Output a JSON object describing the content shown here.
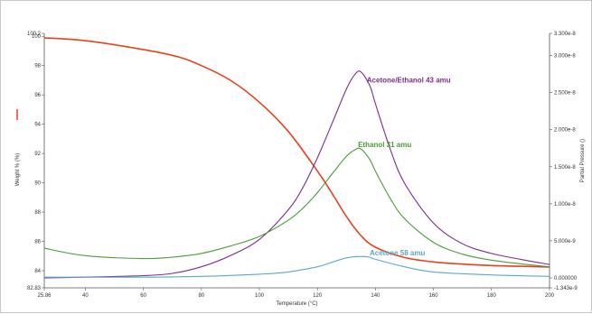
{
  "chart_data": {
    "type": "line",
    "xlabel": "Temperature (°C)",
    "ylabel_left": "Weight % (%)",
    "ylabel_right": "Partial Pressure ()",
    "xlim": [
      25.86,
      200
    ],
    "ylim_left": [
      82.83,
      100.2
    ],
    "ylim_right": [
      -1.343e-09,
      3.3e-08
    ],
    "x_ticks": [
      {
        "value": 25.86,
        "label": "25.86"
      },
      {
        "value": 40,
        "label": "40"
      },
      {
        "value": 60,
        "label": "60"
      },
      {
        "value": 80,
        "label": "80"
      },
      {
        "value": 100,
        "label": "100"
      },
      {
        "value": 120,
        "label": "120"
      },
      {
        "value": 140,
        "label": "140"
      },
      {
        "value": 160,
        "label": "160"
      },
      {
        "value": 180,
        "label": "180"
      },
      {
        "value": 200,
        "label": "200"
      }
    ],
    "y_left_ticks": [
      {
        "value": 100.2,
        "label": "100.2"
      },
      {
        "value": 100,
        "label": "100"
      },
      {
        "value": 98,
        "label": "98"
      },
      {
        "value": 96,
        "label": "96"
      },
      {
        "value": 94,
        "label": "94"
      },
      {
        "value": 92,
        "label": "92"
      },
      {
        "value": 90,
        "label": "90"
      },
      {
        "value": 88,
        "label": "88"
      },
      {
        "value": 86,
        "label": "86"
      },
      {
        "value": 84,
        "label": "84"
      },
      {
        "value": 82.83,
        "label": "82.83"
      }
    ],
    "y_right_ticks": [
      {
        "value": 3.3e-08,
        "label": "3.300e-8"
      },
      {
        "value": 3e-08,
        "label": "3.000e-8"
      },
      {
        "value": 2.5e-08,
        "label": "2.500e-8"
      },
      {
        "value": 2e-08,
        "label": "2.000e-8"
      },
      {
        "value": 1.5e-08,
        "label": "1.500e-8"
      },
      {
        "value": 1e-08,
        "label": "1.000e-8"
      },
      {
        "value": 5e-09,
        "label": "5.000e-9"
      },
      {
        "value": 0,
        "label": "0.000000"
      },
      {
        "value": -1.343e-09,
        "label": "-1.343e-9"
      }
    ],
    "series": [
      {
        "name": "",
        "axis": "left",
        "color": "#e8401c",
        "x": [
          25.86,
          40,
          60,
          72,
          80,
          90,
          100,
          110,
          120,
          125,
          130,
          135,
          140,
          150,
          160,
          170,
          180,
          190,
          200
        ],
        "y": [
          99.9,
          99.7,
          99.1,
          98.6,
          98.0,
          97.0,
          95.5,
          93.5,
          90.8,
          89.3,
          87.7,
          86.4,
          85.6,
          84.9,
          84.6,
          84.45,
          84.35,
          84.3,
          84.25
        ]
      },
      {
        "name": "Acetone/Ethanol 43 amu",
        "axis": "right",
        "color": "#7b2d8b",
        "x": [
          25.86,
          40,
          60,
          70,
          80,
          90,
          100,
          110,
          115,
          120,
          125,
          130,
          133,
          135,
          138,
          140,
          145,
          150,
          160,
          170,
          180,
          190,
          200
        ],
        "y": [
          0.0,
          1e-10,
          3e-10,
          6e-10,
          1.5e-09,
          3e-09,
          5.2e-09,
          9.2e-09,
          1.22e-08,
          1.62e-08,
          2.08e-08,
          2.55e-08,
          2.75e-08,
          2.78e-08,
          2.6e-08,
          2.35e-08,
          1.75e-08,
          1.28e-08,
          7.4e-09,
          4.6e-09,
          3.3e-09,
          2.5e-09,
          1.8e-09
        ]
      },
      {
        "name": "Ethanol 31 amu",
        "axis": "right",
        "color": "#4c9a3a",
        "x": [
          25.86,
          40,
          60,
          70,
          80,
          90,
          100,
          110,
          115,
          120,
          125,
          130,
          133,
          135,
          138,
          140,
          145,
          150,
          160,
          170,
          180,
          190,
          200
        ],
        "y": [
          4e-09,
          3e-09,
          2.6e-09,
          2.8e-09,
          3.3e-09,
          4.3e-09,
          5.6e-09,
          7.8e-09,
          9.4e-09,
          1.15e-08,
          1.4e-08,
          1.64e-08,
          1.73e-08,
          1.74e-08,
          1.6e-08,
          1.44e-08,
          1.08e-08,
          8e-09,
          4.8e-09,
          3.2e-09,
          2.4e-09,
          1.9e-09,
          1.5e-09
        ]
      },
      {
        "name": "Acetone 58 amu",
        "axis": "right",
        "color": "#5aa8c8",
        "x": [
          25.86,
          60,
          80,
          100,
          110,
          120,
          125,
          130,
          135,
          138,
          140,
          150,
          160,
          180,
          200
        ],
        "y": [
          1e-10,
          1e-10,
          2e-10,
          5e-10,
          8e-10,
          1.5e-09,
          2.1e-09,
          2.7e-09,
          2.9e-09,
          2.8e-09,
          2.5e-09,
          1.5e-09,
          8e-10,
          4e-10,
          2e-10
        ]
      }
    ],
    "annotations": [
      {
        "text": "Acetone/Ethanol 43 amu",
        "series": 1,
        "at_x": 137
      },
      {
        "text": "Ethanol 31 amu",
        "series": 2,
        "at_x": 134
      },
      {
        "text": "Acetone 58 amu",
        "series": 3,
        "at_x": 138
      }
    ]
  }
}
